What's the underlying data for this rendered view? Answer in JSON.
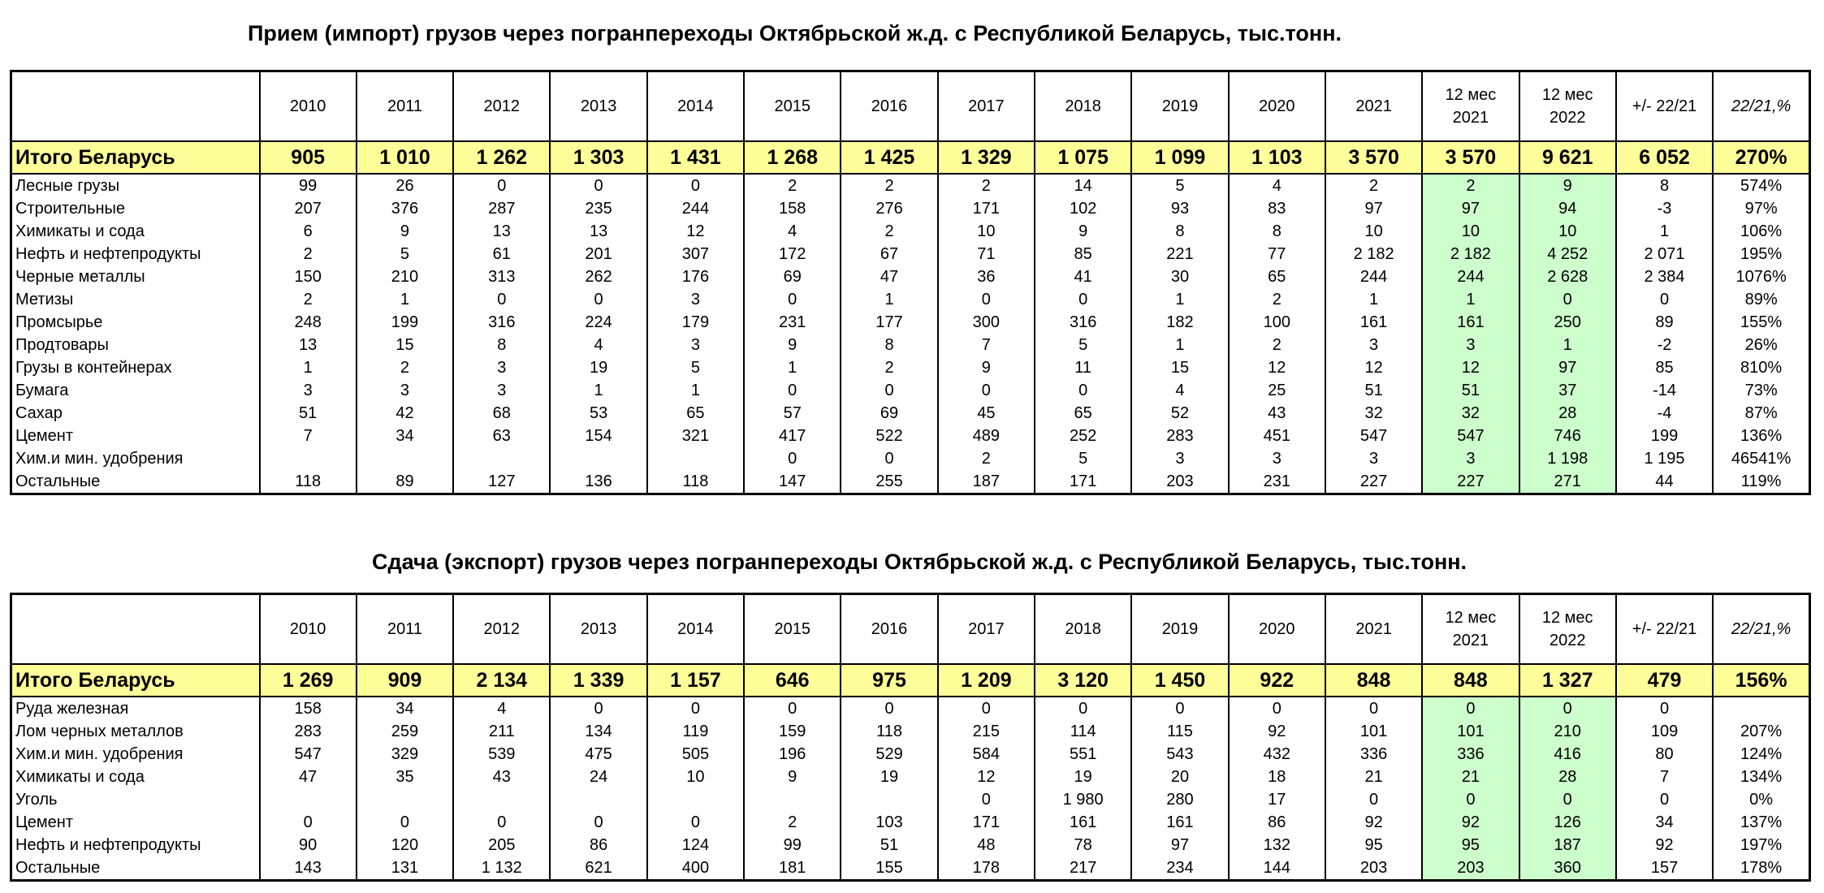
{
  "table1": {
    "title": "Прием (импорт) грузов через погранпереходы Октябрьской ж.д. с Республикой Беларусь, тыс.тонн.",
    "header": [
      "2010",
      "2011",
      "2012",
      "2013",
      "2014",
      "2015",
      "2016",
      "2017",
      "2018",
      "2019",
      "2020",
      "2021",
      "12 мес\n2021",
      "12 мес\n2022",
      "+/- 22/21",
      "22/21,%"
    ],
    "rows": [
      [
        "Итого Беларусь",
        "905",
        "1 010",
        "1 262",
        "1 303",
        "1 431",
        "1 268",
        "1 425",
        "1 329",
        "1 075",
        "1 099",
        "1 103",
        "3 570",
        "3 570",
        "9 621",
        "6 052",
        "270%"
      ],
      [
        "Лесные грузы",
        "99",
        "26",
        "0",
        "0",
        "0",
        "2",
        "2",
        "2",
        "14",
        "5",
        "4",
        "2",
        "2",
        "9",
        "8",
        "574%"
      ],
      [
        "Строительные",
        "207",
        "376",
        "287",
        "235",
        "244",
        "158",
        "276",
        "171",
        "102",
        "93",
        "83",
        "97",
        "97",
        "94",
        "-3",
        "97%"
      ],
      [
        "Химикаты и сода",
        "6",
        "9",
        "13",
        "13",
        "12",
        "4",
        "2",
        "10",
        "9",
        "8",
        "8",
        "10",
        "10",
        "10",
        "1",
        "106%"
      ],
      [
        "Нефть и нефтепродукты",
        "2",
        "5",
        "61",
        "201",
        "307",
        "172",
        "67",
        "71",
        "85",
        "221",
        "77",
        "2 182",
        "2 182",
        "4 252",
        "2 071",
        "195%"
      ],
      [
        "Черные металлы",
        "150",
        "210",
        "313",
        "262",
        "176",
        "69",
        "47",
        "36",
        "41",
        "30",
        "65",
        "244",
        "244",
        "2 628",
        "2 384",
        "1076%"
      ],
      [
        "Метизы",
        "2",
        "1",
        "0",
        "0",
        "3",
        "0",
        "1",
        "0",
        "0",
        "1",
        "2",
        "1",
        "1",
        "0",
        "0",
        "89%"
      ],
      [
        "Промсырье",
        "248",
        "199",
        "316",
        "224",
        "179",
        "231",
        "177",
        "300",
        "316",
        "182",
        "100",
        "161",
        "161",
        "250",
        "89",
        "155%"
      ],
      [
        "Продтовары",
        "13",
        "15",
        "8",
        "4",
        "3",
        "9",
        "8",
        "7",
        "5",
        "1",
        "2",
        "3",
        "3",
        "1",
        "-2",
        "26%"
      ],
      [
        "Грузы в контейнерах",
        "1",
        "2",
        "3",
        "19",
        "5",
        "1",
        "2",
        "9",
        "11",
        "15",
        "12",
        "12",
        "12",
        "97",
        "85",
        "810%"
      ],
      [
        "Бумага",
        "3",
        "3",
        "3",
        "1",
        "1",
        "0",
        "0",
        "0",
        "0",
        "4",
        "25",
        "51",
        "51",
        "37",
        "-14",
        "73%"
      ],
      [
        "Сахар",
        "51",
        "42",
        "68",
        "53",
        "65",
        "57",
        "69",
        "45",
        "65",
        "52",
        "43",
        "32",
        "32",
        "28",
        "-4",
        "87%"
      ],
      [
        "Цемент",
        "7",
        "34",
        "63",
        "154",
        "321",
        "417",
        "522",
        "489",
        "252",
        "283",
        "451",
        "547",
        "547",
        "746",
        "199",
        "136%"
      ],
      [
        "Хим.и мин. удобрения",
        null,
        null,
        null,
        null,
        null,
        "0",
        "0",
        "2",
        "5",
        "3",
        "3",
        "3",
        "3",
        "1 198",
        "1 195",
        "46541%"
      ],
      [
        "Остальные",
        "118",
        "89",
        "127",
        "136",
        "118",
        "147",
        "255",
        "187",
        "171",
        "203",
        "231",
        "227",
        "227",
        "271",
        "44",
        "119%"
      ]
    ]
  },
  "table2": {
    "title": "Сдача (экспорт) грузов через погранпереходы Октябрьской ж.д. с Республикой Беларусь, тыс.тонн.",
    "header": [
      "2010",
      "2011",
      "2012",
      "2013",
      "2014",
      "2015",
      "2016",
      "2017",
      "2018",
      "2019",
      "2020",
      "2021",
      "12 мес\n2021",
      "12 мес\n2022",
      "+/- 22/21",
      "22/21,%"
    ],
    "rows": [
      [
        "Итого Беларусь",
        "1 269",
        "909",
        "2 134",
        "1 339",
        "1 157",
        "646",
        "975",
        "1 209",
        "3 120",
        "1 450",
        "922",
        "848",
        "848",
        "1 327",
        "479",
        "156%"
      ],
      [
        "Руда железная",
        "158",
        "34",
        "4",
        "0",
        "0",
        "0",
        "0",
        "0",
        "0",
        "0",
        "0",
        "0",
        "0",
        "0",
        "0",
        null
      ],
      [
        "Лом черных металлов",
        "283",
        "259",
        "211",
        "134",
        "119",
        "159",
        "118",
        "215",
        "114",
        "115",
        "92",
        "101",
        "101",
        "210",
        "109",
        "207%"
      ],
      [
        "Хим.и мин. удобрения",
        "547",
        "329",
        "539",
        "475",
        "505",
        "196",
        "529",
        "584",
        "551",
        "543",
        "432",
        "336",
        "336",
        "416",
        "80",
        "124%"
      ],
      [
        "Химикаты и сода",
        "47",
        "35",
        "43",
        "24",
        "10",
        "9",
        "19",
        "12",
        "19",
        "20",
        "18",
        "21",
        "21",
        "28",
        "7",
        "134%"
      ],
      [
        "Уголь",
        null,
        null,
        null,
        null,
        null,
        null,
        null,
        "0",
        "1 980",
        "280",
        "17",
        "0",
        "0",
        "0",
        "0",
        "0%"
      ],
      [
        "Цемент",
        "0",
        "0",
        "0",
        "0",
        "0",
        "2",
        "103",
        "171",
        "161",
        "161",
        "86",
        "92",
        "92",
        "126",
        "34",
        "137%"
      ],
      [
        "Нефть и нефтепродукты",
        "90",
        "120",
        "205",
        "86",
        "124",
        "99",
        "51",
        "48",
        "78",
        "97",
        "132",
        "95",
        "95",
        "187",
        "92",
        "197%"
      ],
      [
        "Остальные",
        "143",
        "131",
        "1 132",
        "621",
        "400",
        "181",
        "155",
        "178",
        "217",
        "234",
        "144",
        "203",
        "203",
        "360",
        "157",
        "178%"
      ]
    ]
  }
}
